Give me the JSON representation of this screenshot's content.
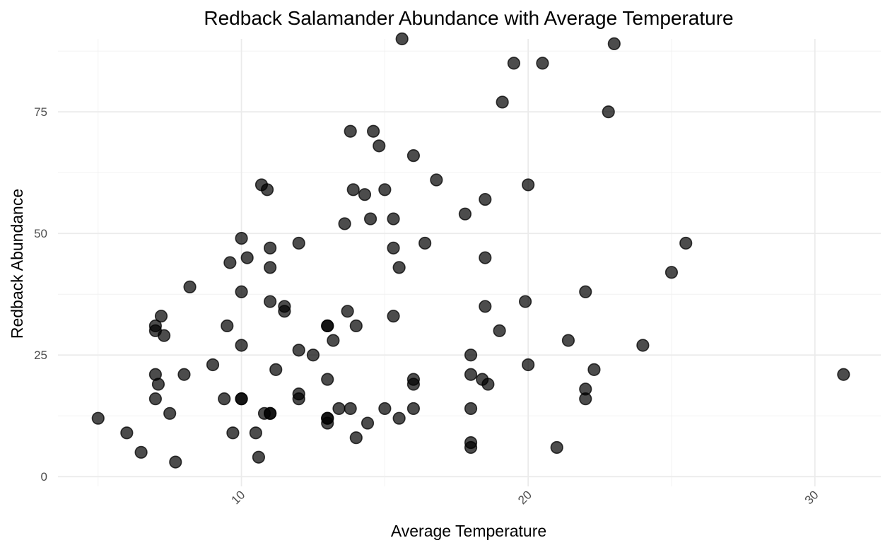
{
  "chart_data": {
    "type": "scatter",
    "title": "Redback Salamander Abundance with Average Temperature",
    "xlabel": "Average Temperature",
    "ylabel": "Redback Abundance",
    "xlim": [
      3.6,
      32.3
    ],
    "ylim": [
      -2,
      90
    ],
    "x_ticks": [
      10,
      20,
      30
    ],
    "x_minor_ticks": [
      5,
      15,
      25
    ],
    "y_ticks": [
      0,
      25,
      50,
      75
    ],
    "y_minor_ticks": [
      12.5,
      37.5,
      62.5,
      87.5
    ],
    "x_tick_rotation": -45,
    "grid": true,
    "legend": "none",
    "point_color": "#000000",
    "point_opacity": 0.7,
    "series": [
      {
        "points": [
          [
            5,
            12
          ],
          [
            6,
            9
          ],
          [
            6.5,
            5
          ],
          [
            7,
            16
          ],
          [
            7,
            21
          ],
          [
            7,
            30
          ],
          [
            7,
            31
          ],
          [
            7.1,
            19
          ],
          [
            7.2,
            33
          ],
          [
            7.3,
            29
          ],
          [
            7.5,
            13
          ],
          [
            7.7,
            3
          ],
          [
            8,
            21
          ],
          [
            8.2,
            39
          ],
          [
            9,
            23
          ],
          [
            9.4,
            16
          ],
          [
            9.5,
            31
          ],
          [
            9.6,
            44
          ],
          [
            9.7,
            9
          ],
          [
            10,
            16
          ],
          [
            10,
            16
          ],
          [
            10,
            27
          ],
          [
            10,
            38
          ],
          [
            10,
            49
          ],
          [
            10.2,
            45
          ],
          [
            10.5,
            9
          ],
          [
            10.6,
            4
          ],
          [
            10.7,
            60
          ],
          [
            10.8,
            13
          ],
          [
            10.9,
            59
          ],
          [
            11,
            13
          ],
          [
            11,
            13
          ],
          [
            11,
            36
          ],
          [
            11,
            43
          ],
          [
            11,
            47
          ],
          [
            11.2,
            22
          ],
          [
            11.5,
            34
          ],
          [
            11.5,
            35
          ],
          [
            12,
            16
          ],
          [
            12,
            17
          ],
          [
            12,
            26
          ],
          [
            12,
            48
          ],
          [
            12.5,
            25
          ],
          [
            13,
            11
          ],
          [
            13,
            12
          ],
          [
            13,
            12
          ],
          [
            13,
            20
          ],
          [
            13,
            31
          ],
          [
            13,
            31
          ],
          [
            13.2,
            28
          ],
          [
            13.4,
            14
          ],
          [
            13.6,
            52
          ],
          [
            13.7,
            34
          ],
          [
            13.8,
            71
          ],
          [
            13.8,
            14
          ],
          [
            13.9,
            59
          ],
          [
            14,
            31
          ],
          [
            14,
            8
          ],
          [
            14.3,
            58
          ],
          [
            14.4,
            11
          ],
          [
            14.5,
            53
          ],
          [
            14.6,
            71
          ],
          [
            14.8,
            68
          ],
          [
            15,
            14
          ],
          [
            15,
            59
          ],
          [
            15.3,
            33
          ],
          [
            15.3,
            47
          ],
          [
            15.3,
            53
          ],
          [
            15.5,
            12
          ],
          [
            15.5,
            43
          ],
          [
            15.6,
            90
          ],
          [
            16,
            19
          ],
          [
            16,
            20
          ],
          [
            16,
            14
          ],
          [
            16,
            66
          ],
          [
            16.4,
            48
          ],
          [
            16.8,
            61
          ],
          [
            17.8,
            54
          ],
          [
            18,
            6
          ],
          [
            18,
            7
          ],
          [
            18,
            14
          ],
          [
            18,
            21
          ],
          [
            18,
            25
          ],
          [
            18.4,
            20
          ],
          [
            18.5,
            35
          ],
          [
            18.5,
            45
          ],
          [
            18.5,
            57
          ],
          [
            18.6,
            19
          ],
          [
            19,
            30
          ],
          [
            19.1,
            77
          ],
          [
            19.5,
            85
          ],
          [
            19.9,
            36
          ],
          [
            20,
            23
          ],
          [
            20,
            60
          ],
          [
            20.5,
            85
          ],
          [
            21,
            6
          ],
          [
            21.4,
            28
          ],
          [
            22,
            16
          ],
          [
            22,
            18
          ],
          [
            22,
            38
          ],
          [
            22.3,
            22
          ],
          [
            22.8,
            75
          ],
          [
            23,
            89
          ],
          [
            24,
            27
          ],
          [
            25,
            42
          ],
          [
            25.5,
            48
          ],
          [
            31,
            21
          ]
        ]
      }
    ]
  }
}
